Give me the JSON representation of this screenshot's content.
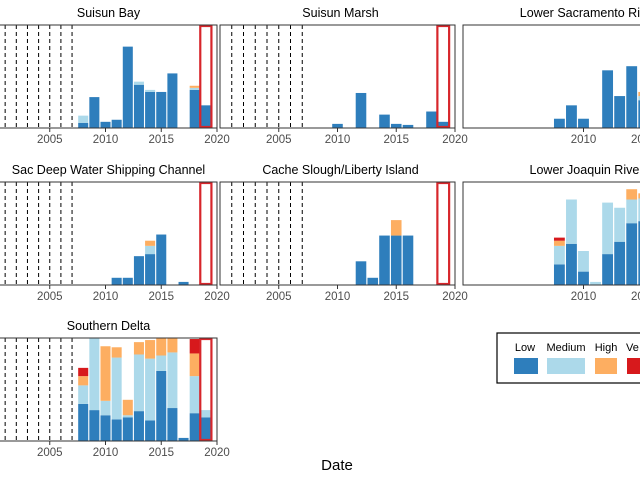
{
  "figure": {
    "xlabel": "Date",
    "x_ticks": [
      "2005",
      "2010",
      "2015",
      "2020"
    ]
  },
  "legend": {
    "entries": [
      {
        "label": "Low",
        "color": "#2e7ebc"
      },
      {
        "label": "Medium",
        "color": "#acd9ea"
      },
      {
        "label": "High",
        "color": "#fdae61"
      },
      {
        "label": "Ve",
        "color": "#d7191c"
      }
    ]
  },
  "colors": {
    "low": "#2e7ebc",
    "medium": "#acd9ea",
    "high": "#fdae61",
    "very_high": "#d7191c",
    "highlight_box": "#d7262b",
    "panel_border": "#333333"
  },
  "chart_data": [
    {
      "type": "bar",
      "stacked": true,
      "title": "Suisun Bay",
      "xlim": [
        2000,
        2020
      ],
      "ylim": [
        0,
        1
      ],
      "x_ticks": [
        2005,
        2010,
        2015,
        2020
      ],
      "dashed_lines": [
        2001,
        2002,
        2003,
        2004,
        2005,
        2006,
        2007
      ],
      "highlight": [
        2018.5,
        2019.5
      ],
      "x": [
        2008,
        2009,
        2010,
        2011,
        2012,
        2013,
        2014,
        2015,
        2016,
        2017,
        2018,
        2019
      ],
      "series": [
        {
          "name": "Low",
          "values": [
            0.05,
            0.3,
            0.06,
            0.08,
            0.79,
            0.42,
            0.35,
            0.35,
            0.53,
            0,
            0.37,
            0.22
          ]
        },
        {
          "name": "Medium",
          "values": [
            0.07,
            0,
            0,
            0,
            0,
            0.03,
            0.02,
            0,
            0,
            0,
            0.02,
            0
          ]
        },
        {
          "name": "High",
          "values": [
            0,
            0,
            0,
            0,
            0,
            0,
            0,
            0,
            0,
            0,
            0.02,
            0
          ]
        },
        {
          "name": "Very High",
          "values": [
            0,
            0,
            0,
            0,
            0,
            0,
            0,
            0,
            0,
            0,
            0,
            0
          ]
        }
      ]
    },
    {
      "type": "bar",
      "stacked": true,
      "title": "Suisun Marsh",
      "xlim": [
        2000,
        2020
      ],
      "ylim": [
        0,
        1
      ],
      "x_ticks": [
        2005,
        2010,
        2015,
        2020
      ],
      "dashed_lines": [
        2001,
        2002,
        2003,
        2004,
        2005,
        2006,
        2007
      ],
      "highlight": [
        2018.5,
        2019.5
      ],
      "x": [
        2008,
        2009,
        2010,
        2011,
        2012,
        2013,
        2014,
        2015,
        2016,
        2017,
        2018,
        2019
      ],
      "series": [
        {
          "name": "Low",
          "values": [
            0,
            0,
            0.04,
            0,
            0.34,
            0,
            0.13,
            0.04,
            0.03,
            0,
            0.16,
            0.06
          ]
        },
        {
          "name": "Medium",
          "values": [
            0,
            0,
            0,
            0,
            0,
            0,
            0,
            0,
            0,
            0,
            0,
            0
          ]
        },
        {
          "name": "High",
          "values": [
            0,
            0,
            0,
            0,
            0,
            0,
            0,
            0,
            0,
            0,
            0,
            0
          ]
        },
        {
          "name": "Very High",
          "values": [
            0,
            0,
            0,
            0,
            0,
            0,
            0,
            0,
            0,
            0,
            0,
            0
          ]
        }
      ]
    },
    {
      "type": "bar",
      "stacked": true,
      "title": "Lower Sacramento Rive",
      "xlim": [
        2000,
        2020
      ],
      "ylim": [
        0,
        1
      ],
      "x_ticks": [
        2010,
        2015
      ],
      "dashed_lines": [],
      "highlight": null,
      "x": [
        2008,
        2009,
        2010,
        2011,
        2012,
        2013,
        2014,
        2015,
        2016,
        2017,
        2018,
        2019
      ],
      "series": [
        {
          "name": "Low",
          "values": [
            0.09,
            0.22,
            0.09,
            0,
            0.56,
            0.31,
            0.6,
            0.27,
            0.12,
            0,
            0,
            0
          ]
        },
        {
          "name": "Medium",
          "values": [
            0,
            0,
            0,
            0,
            0,
            0,
            0,
            0.04,
            0,
            0,
            0,
            0
          ]
        },
        {
          "name": "High",
          "values": [
            0,
            0,
            0,
            0,
            0,
            0,
            0,
            0.04,
            0,
            0,
            0,
            0
          ]
        },
        {
          "name": "Very High",
          "values": [
            0,
            0,
            0,
            0,
            0,
            0,
            0,
            0,
            0,
            0,
            0,
            0
          ]
        }
      ]
    },
    {
      "type": "bar",
      "stacked": true,
      "title": "Sac Deep Water Shipping Channel",
      "xlim": [
        2000,
        2020
      ],
      "ylim": [
        0,
        1
      ],
      "x_ticks": [
        2005,
        2010,
        2015,
        2020
      ],
      "dashed_lines": [
        2001,
        2002,
        2003,
        2004,
        2005,
        2006,
        2007
      ],
      "highlight": [
        2018.5,
        2019.5
      ],
      "x": [
        2008,
        2009,
        2010,
        2011,
        2012,
        2013,
        2014,
        2015,
        2016,
        2017,
        2018,
        2019
      ],
      "series": [
        {
          "name": "Low",
          "values": [
            0,
            0,
            0,
            0.07,
            0.07,
            0.28,
            0.3,
            0.49,
            0,
            0.03,
            0,
            0
          ]
        },
        {
          "name": "Medium",
          "values": [
            0,
            0,
            0,
            0,
            0,
            0,
            0.08,
            0,
            0,
            0,
            0,
            0
          ]
        },
        {
          "name": "High",
          "values": [
            0,
            0,
            0,
            0,
            0,
            0,
            0.05,
            0,
            0,
            0,
            0,
            0
          ]
        },
        {
          "name": "Very High",
          "values": [
            0,
            0,
            0,
            0,
            0,
            0,
            0,
            0,
            0,
            0,
            0,
            0
          ]
        }
      ]
    },
    {
      "type": "bar",
      "stacked": true,
      "title": "Cache Slough/Liberty Island",
      "xlim": [
        2000,
        2020
      ],
      "ylim": [
        0,
        1
      ],
      "x_ticks": [
        2005,
        2010,
        2015,
        2020
      ],
      "dashed_lines": [
        2001,
        2002,
        2003,
        2004,
        2005,
        2006,
        2007
      ],
      "highlight": [
        2018.5,
        2019.5
      ],
      "x": [
        2008,
        2009,
        2010,
        2011,
        2012,
        2013,
        2014,
        2015,
        2016,
        2017,
        2018,
        2019
      ],
      "series": [
        {
          "name": "Low",
          "values": [
            0,
            0,
            0,
            0,
            0.23,
            0.07,
            0.48,
            0.48,
            0.48,
            0,
            0,
            0
          ]
        },
        {
          "name": "Medium",
          "values": [
            0,
            0,
            0,
            0,
            0,
            0,
            0,
            0,
            0,
            0,
            0,
            0
          ]
        },
        {
          "name": "High",
          "values": [
            0,
            0,
            0,
            0,
            0,
            0,
            0,
            0.15,
            0,
            0,
            0,
            0
          ]
        },
        {
          "name": "Very High",
          "values": [
            0,
            0,
            0,
            0,
            0,
            0,
            0,
            0,
            0,
            0,
            0,
            0
          ]
        }
      ]
    },
    {
      "type": "bar",
      "stacked": true,
      "title": "Lower Joaquin River",
      "xlim": [
        2000,
        2020
      ],
      "ylim": [
        0,
        1
      ],
      "x_ticks": [
        2010,
        2015
      ],
      "dashed_lines": [],
      "highlight": null,
      "x": [
        2008,
        2009,
        2010,
        2011,
        2012,
        2013,
        2014,
        2015,
        2016,
        2017,
        2018,
        2019
      ],
      "series": [
        {
          "name": "Low",
          "values": [
            0.2,
            0.4,
            0.13,
            0,
            0.3,
            0.42,
            0.6,
            0.62,
            0.62,
            0,
            0,
            0
          ]
        },
        {
          "name": "Medium",
          "values": [
            0.18,
            0.43,
            0.2,
            0.03,
            0.5,
            0.33,
            0.23,
            0.22,
            0.2,
            0,
            0,
            0
          ]
        },
        {
          "name": "High",
          "values": [
            0.05,
            0,
            0,
            0,
            0,
            0,
            0.1,
            0.05,
            0.03,
            0,
            0,
            0
          ]
        },
        {
          "name": "Very High",
          "values": [
            0.03,
            0,
            0,
            0,
            0,
            0,
            0,
            0,
            0,
            0,
            0,
            0
          ]
        }
      ]
    },
    {
      "type": "bar",
      "stacked": true,
      "title": "Southern Delta",
      "xlim": [
        2000,
        2020
      ],
      "ylim": [
        0,
        1
      ],
      "x_ticks": [
        2005,
        2010,
        2015,
        2020
      ],
      "dashed_lines": [
        2001,
        2002,
        2003,
        2004,
        2005,
        2006,
        2007
      ],
      "highlight": [
        2018.5,
        2019.5
      ],
      "x": [
        2008,
        2009,
        2010,
        2011,
        2012,
        2013,
        2014,
        2015,
        2016,
        2017,
        2018,
        2019
      ],
      "series": [
        {
          "name": "Low",
          "values": [
            0.36,
            0.3,
            0.25,
            0.21,
            0.23,
            0.29,
            0.2,
            0.68,
            0.32,
            0.03,
            0.27,
            0.23
          ]
        },
        {
          "name": "Medium",
          "values": [
            0.18,
            0.7,
            0.14,
            0.6,
            0.02,
            0.55,
            0.6,
            0.15,
            0.54,
            0,
            0.36,
            0.07
          ]
        },
        {
          "name": "High",
          "values": [
            0.09,
            0,
            0.53,
            0.1,
            0.15,
            0.12,
            0.18,
            0.17,
            0.14,
            0,
            0.22,
            0
          ]
        },
        {
          "name": "Very High",
          "values": [
            0.08,
            0,
            0,
            0,
            0,
            0,
            0,
            0,
            0,
            0,
            0.14,
            0
          ]
        }
      ]
    }
  ]
}
